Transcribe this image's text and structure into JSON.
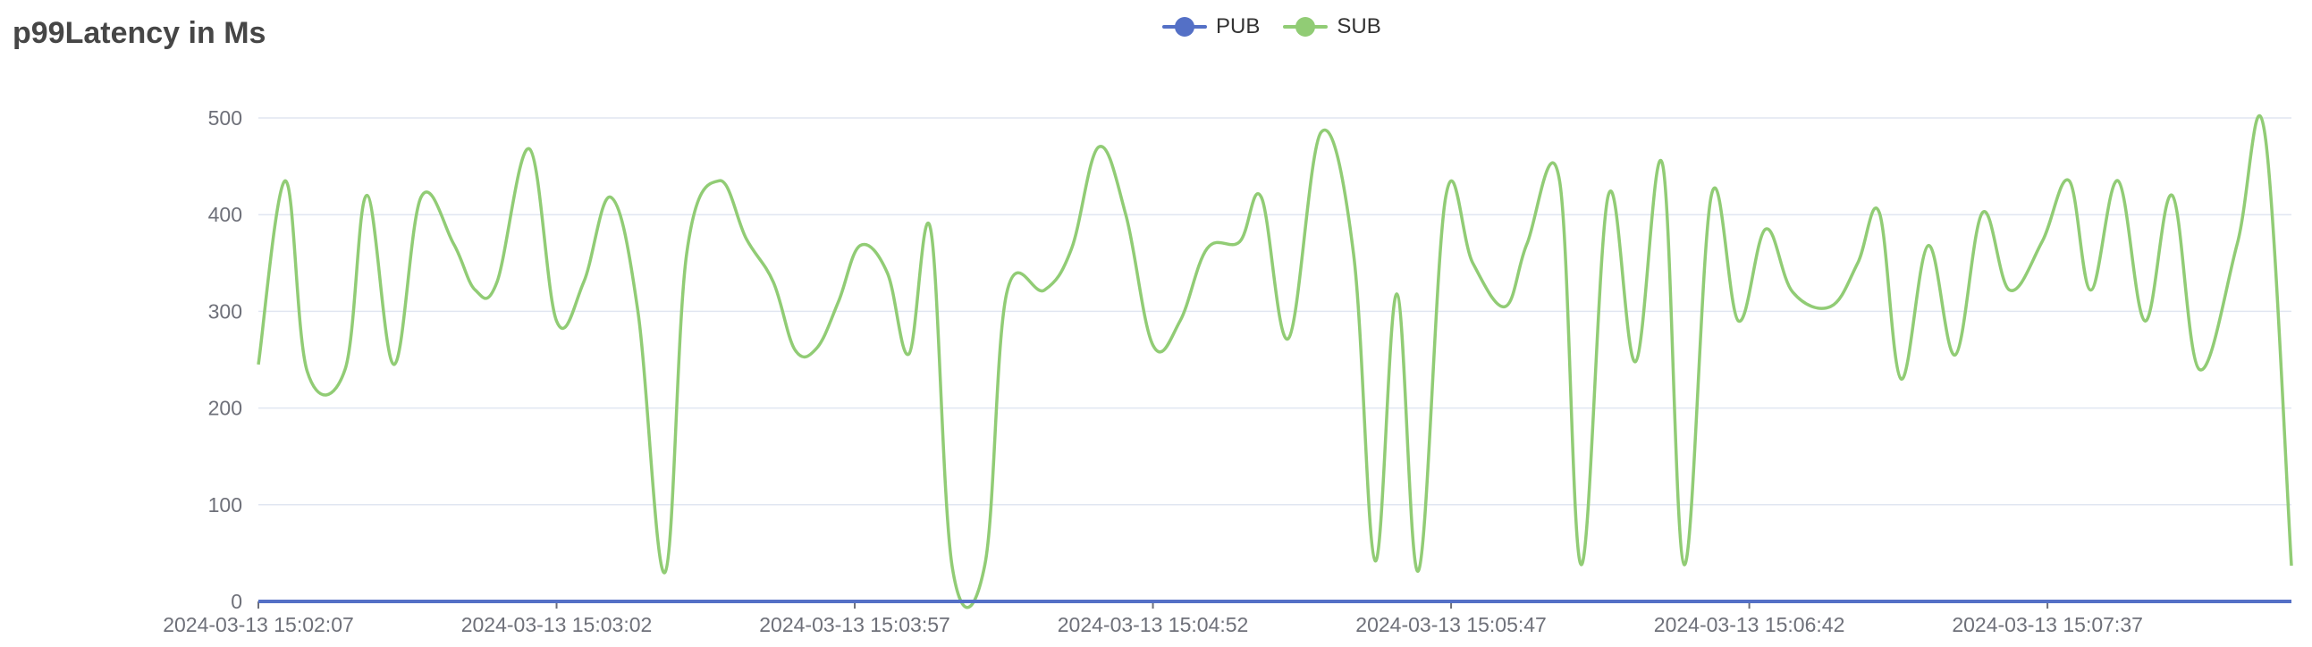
{
  "chart_data": {
    "type": "line",
    "title": "p99Latency in Ms",
    "xlabel": "",
    "ylabel": "",
    "ylim": [
      0,
      500
    ],
    "yticks": [
      "0",
      "100",
      "200",
      "300",
      "400",
      "500"
    ],
    "x_tick_labels": [
      "2024-03-13 15:02:07",
      "2024-03-13 15:03:02",
      "2024-03-13 15:03:57",
      "2024-03-13 15:04:52",
      "2024-03-13 15:05:47",
      "2024-03-13 15:06:42",
      "2024-03-13 15:07:37"
    ],
    "x_range_seconds": [
      0,
      375
    ],
    "x_tick_seconds": [
      0,
      55,
      110,
      165,
      220,
      275,
      330
    ],
    "grid": true,
    "legend": "top-center",
    "series": [
      {
        "name": "PUB",
        "color": "#5470c6",
        "points": [
          [
            0,
            0
          ],
          [
            375,
            0
          ]
        ]
      },
      {
        "name": "SUB",
        "color": "#91cc75",
        "points": [
          [
            0,
            245
          ],
          [
            5,
            435
          ],
          [
            9,
            238
          ],
          [
            16,
            240
          ],
          [
            20,
            420
          ],
          [
            25,
            245
          ],
          [
            30,
            418
          ],
          [
            36,
            370
          ],
          [
            40,
            322
          ],
          [
            44,
            330
          ],
          [
            50,
            468
          ],
          [
            55,
            290
          ],
          [
            60,
            330
          ],
          [
            65,
            418
          ],
          [
            70,
            300
          ],
          [
            75,
            30
          ],
          [
            79,
            360
          ],
          [
            85,
            435
          ],
          [
            90,
            375
          ],
          [
            95,
            330
          ],
          [
            99,
            260
          ],
          [
            103,
            262
          ],
          [
            107,
            310
          ],
          [
            111,
            368
          ],
          [
            116,
            340
          ],
          [
            120,
            256
          ],
          [
            124,
            385
          ],
          [
            128,
            35
          ],
          [
            134,
            38
          ],
          [
            138,
            318
          ],
          [
            145,
            322
          ],
          [
            150,
            365
          ],
          [
            155,
            470
          ],
          [
            160,
            400
          ],
          [
            165,
            265
          ],
          [
            170,
            290
          ],
          [
            175,
            365
          ],
          [
            181,
            372
          ],
          [
            185,
            418
          ],
          [
            190,
            272
          ],
          [
            196,
            485
          ],
          [
            202,
            360
          ],
          [
            206,
            42
          ],
          [
            210,
            318
          ],
          [
            214,
            32
          ],
          [
            219,
            418
          ],
          [
            224,
            350
          ],
          [
            230,
            305
          ],
          [
            234,
            370
          ],
          [
            240,
            435
          ],
          [
            244,
            38
          ],
          [
            249,
            420
          ],
          [
            254,
            248
          ],
          [
            259,
            452
          ],
          [
            263,
            38
          ],
          [
            268,
            420
          ],
          [
            273,
            290
          ],
          [
            278,
            385
          ],
          [
            283,
            320
          ],
          [
            290,
            305
          ],
          [
            295,
            350
          ],
          [
            299,
            402
          ],
          [
            303,
            230
          ],
          [
            308,
            368
          ],
          [
            313,
            255
          ],
          [
            318,
            402
          ],
          [
            323,
            322
          ],
          [
            329,
            372
          ],
          [
            334,
            435
          ],
          [
            338,
            322
          ],
          [
            343,
            435
          ],
          [
            348,
            290
          ],
          [
            353,
            420
          ],
          [
            358,
            240
          ],
          [
            365,
            370
          ],
          [
            370,
            487
          ],
          [
            375,
            37
          ]
        ]
      }
    ]
  }
}
